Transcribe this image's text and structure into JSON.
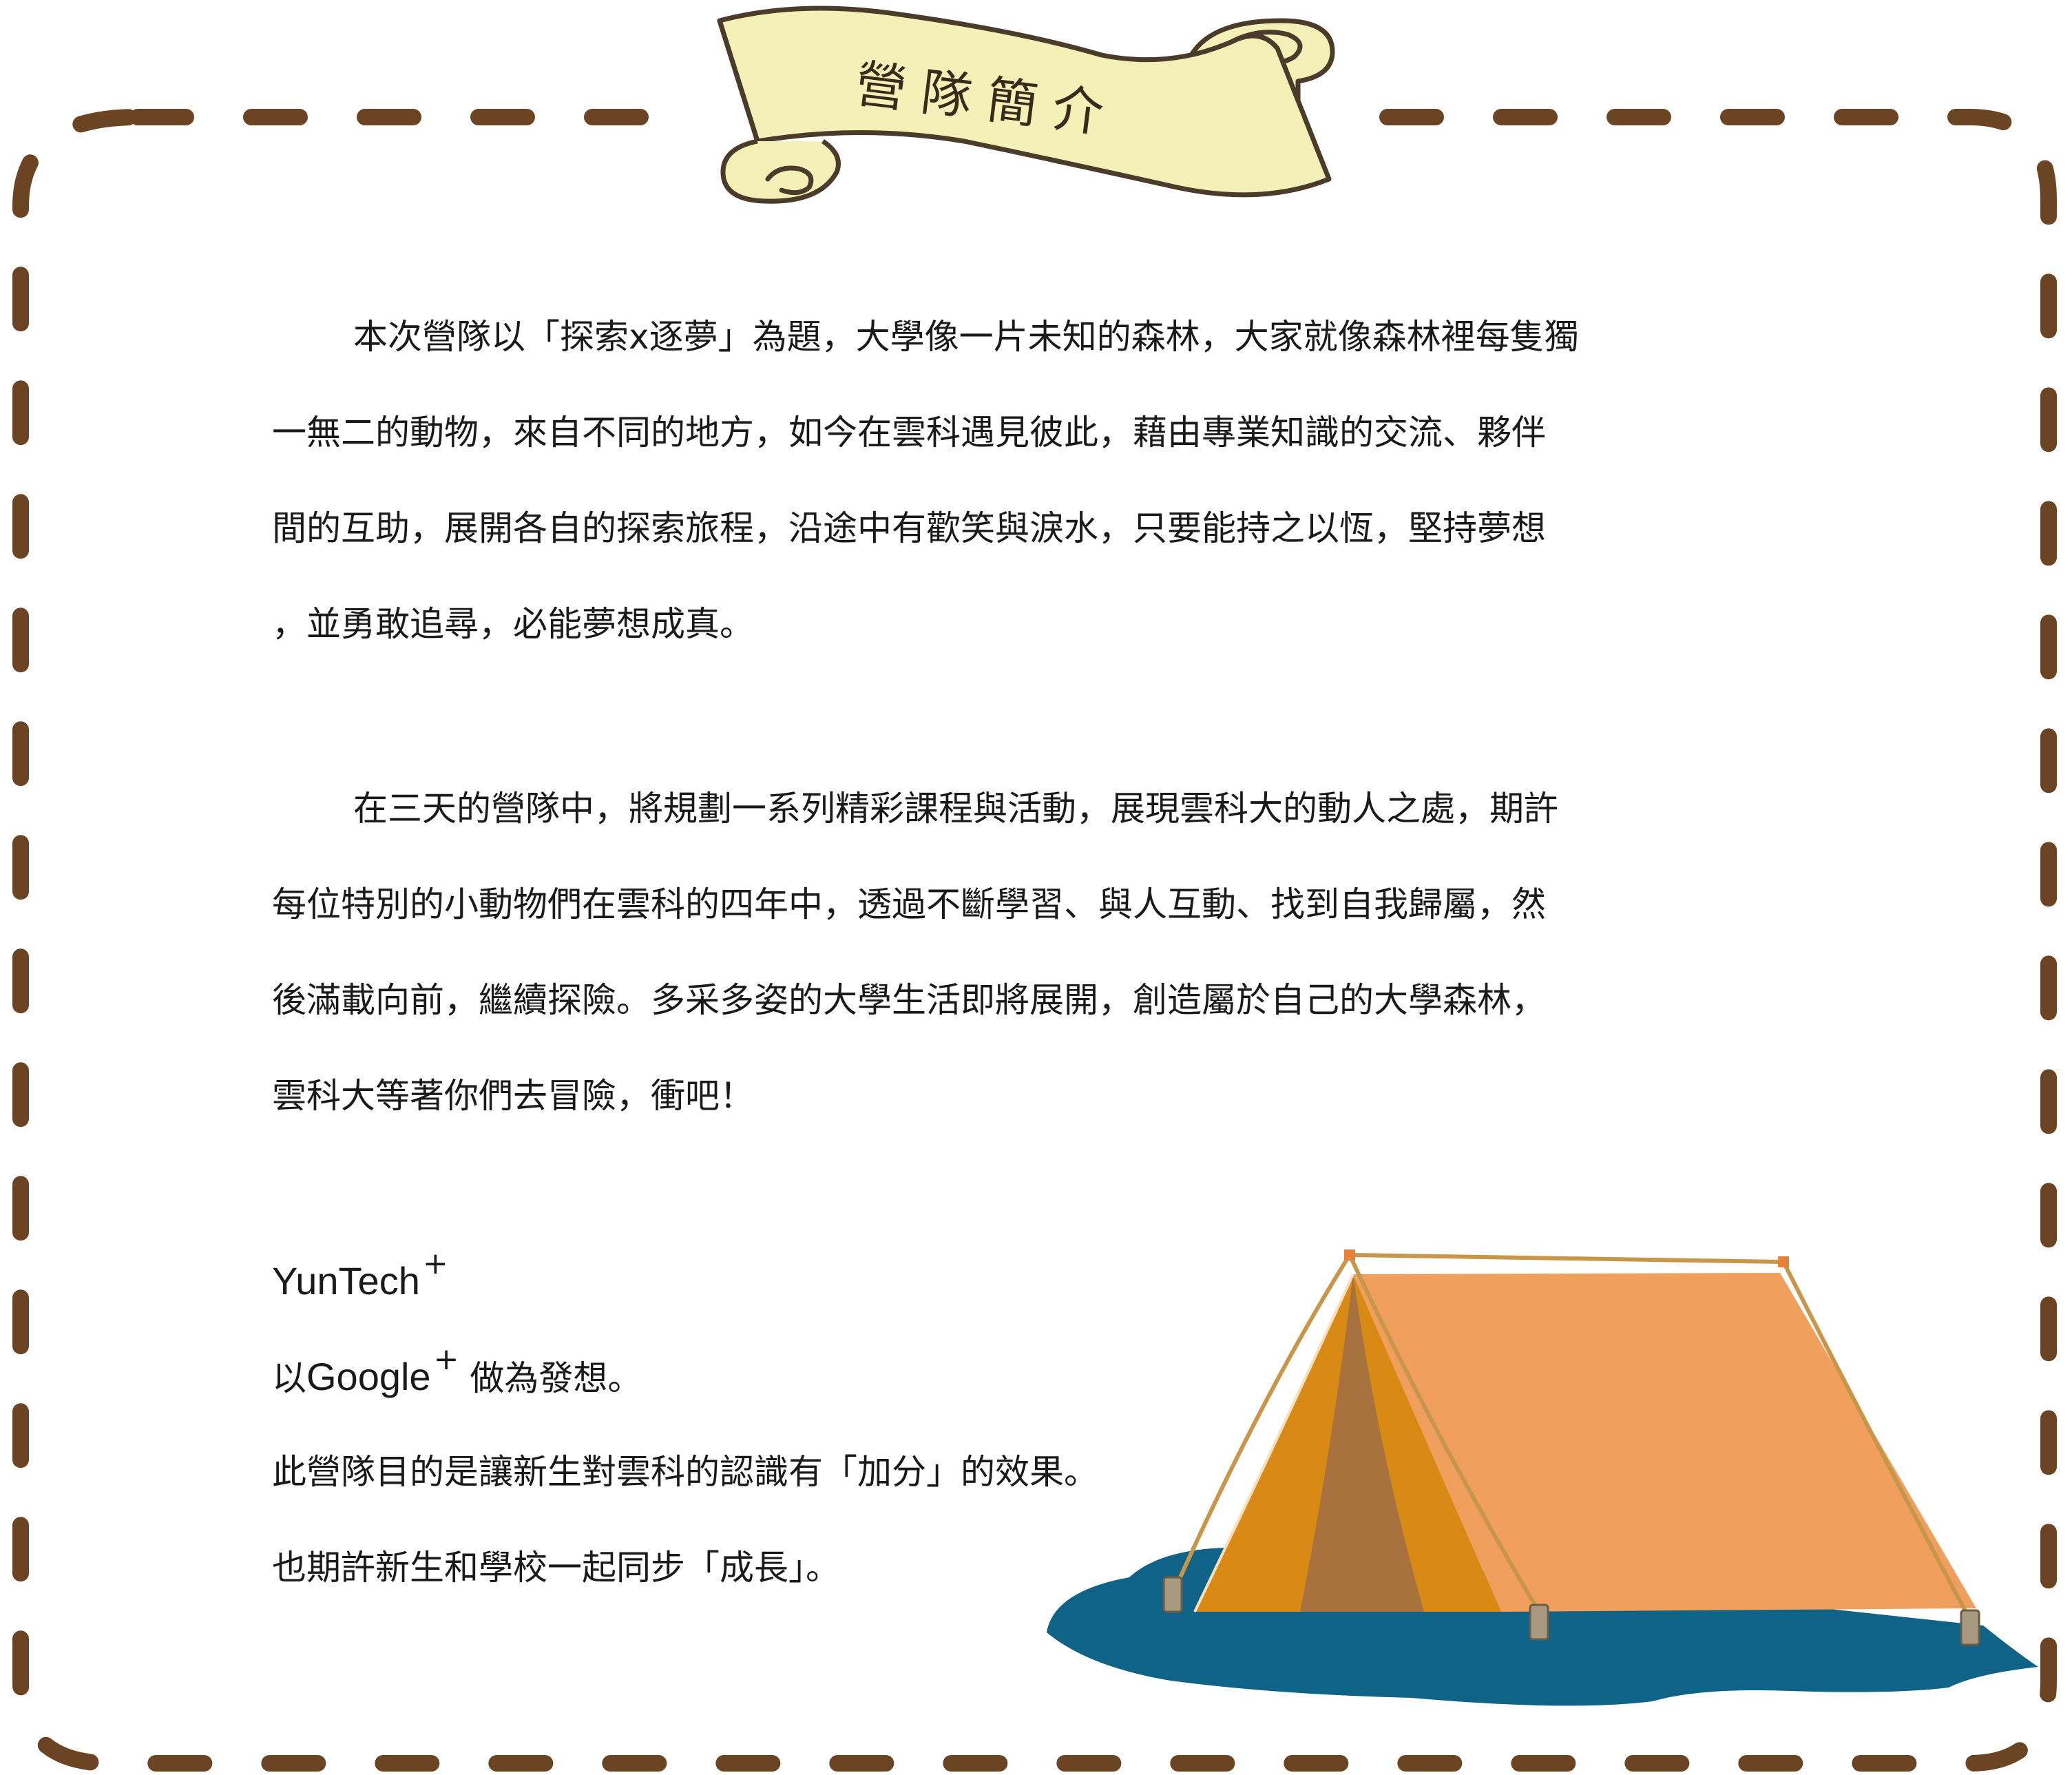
{
  "banner": {
    "title": "營隊簡介"
  },
  "intro": {
    "paragraph1": [
      "本次營隊以「探索x逐夢」為題，大學像一片未知的森林，大家就像森林裡每隻獨",
      "一無二的動物，來自不同的地方，如今在雲科遇見彼此，藉由專業知識的交流、夥伴",
      "間的互助，展開各自的探索旅程，沿途中有歡笑與淚水，只要能持之以恆，堅持夢想",
      "，並勇敢追尋，必能夢想成真。"
    ],
    "paragraph2": [
      "在三天的營隊中，將規劃一系列精彩課程與活動，展現雲科大的動人之處，期許",
      "每位特別的小動物們在雲科的四年中，透過不斷學習、與人互動、找到自我歸屬，然",
      "後滿載向前，繼續探險。多采多姿的大學生活即將展開，創造屬於自己的大學森林，",
      "雲科大等著你們去冒險，衝吧！"
    ]
  },
  "name_section": {
    "brand": "YunTech",
    "brand_plus": "+",
    "line2_prefix": "以",
    "line2_brand": "Google",
    "line2_plus": "+",
    "line2_suffix": " 做為發想。",
    "line3": "此營隊目的是讓新生對雲科的認識有「加分」的效果。",
    "line4": "也期許新生和學校一起同步「成長」。"
  },
  "colors": {
    "dash_border": "#6b4423",
    "banner_fill": "#f3f0b8",
    "banner_stroke": "#4a3b2a",
    "tent_front": "#d98a14",
    "tent_side": "#f0a05c",
    "tent_door": "#a8723e",
    "ground": "#0e6387",
    "rope": "#c8964a"
  },
  "illustration": {
    "tent": "tent-illustration",
    "ground": "ground-patch"
  }
}
